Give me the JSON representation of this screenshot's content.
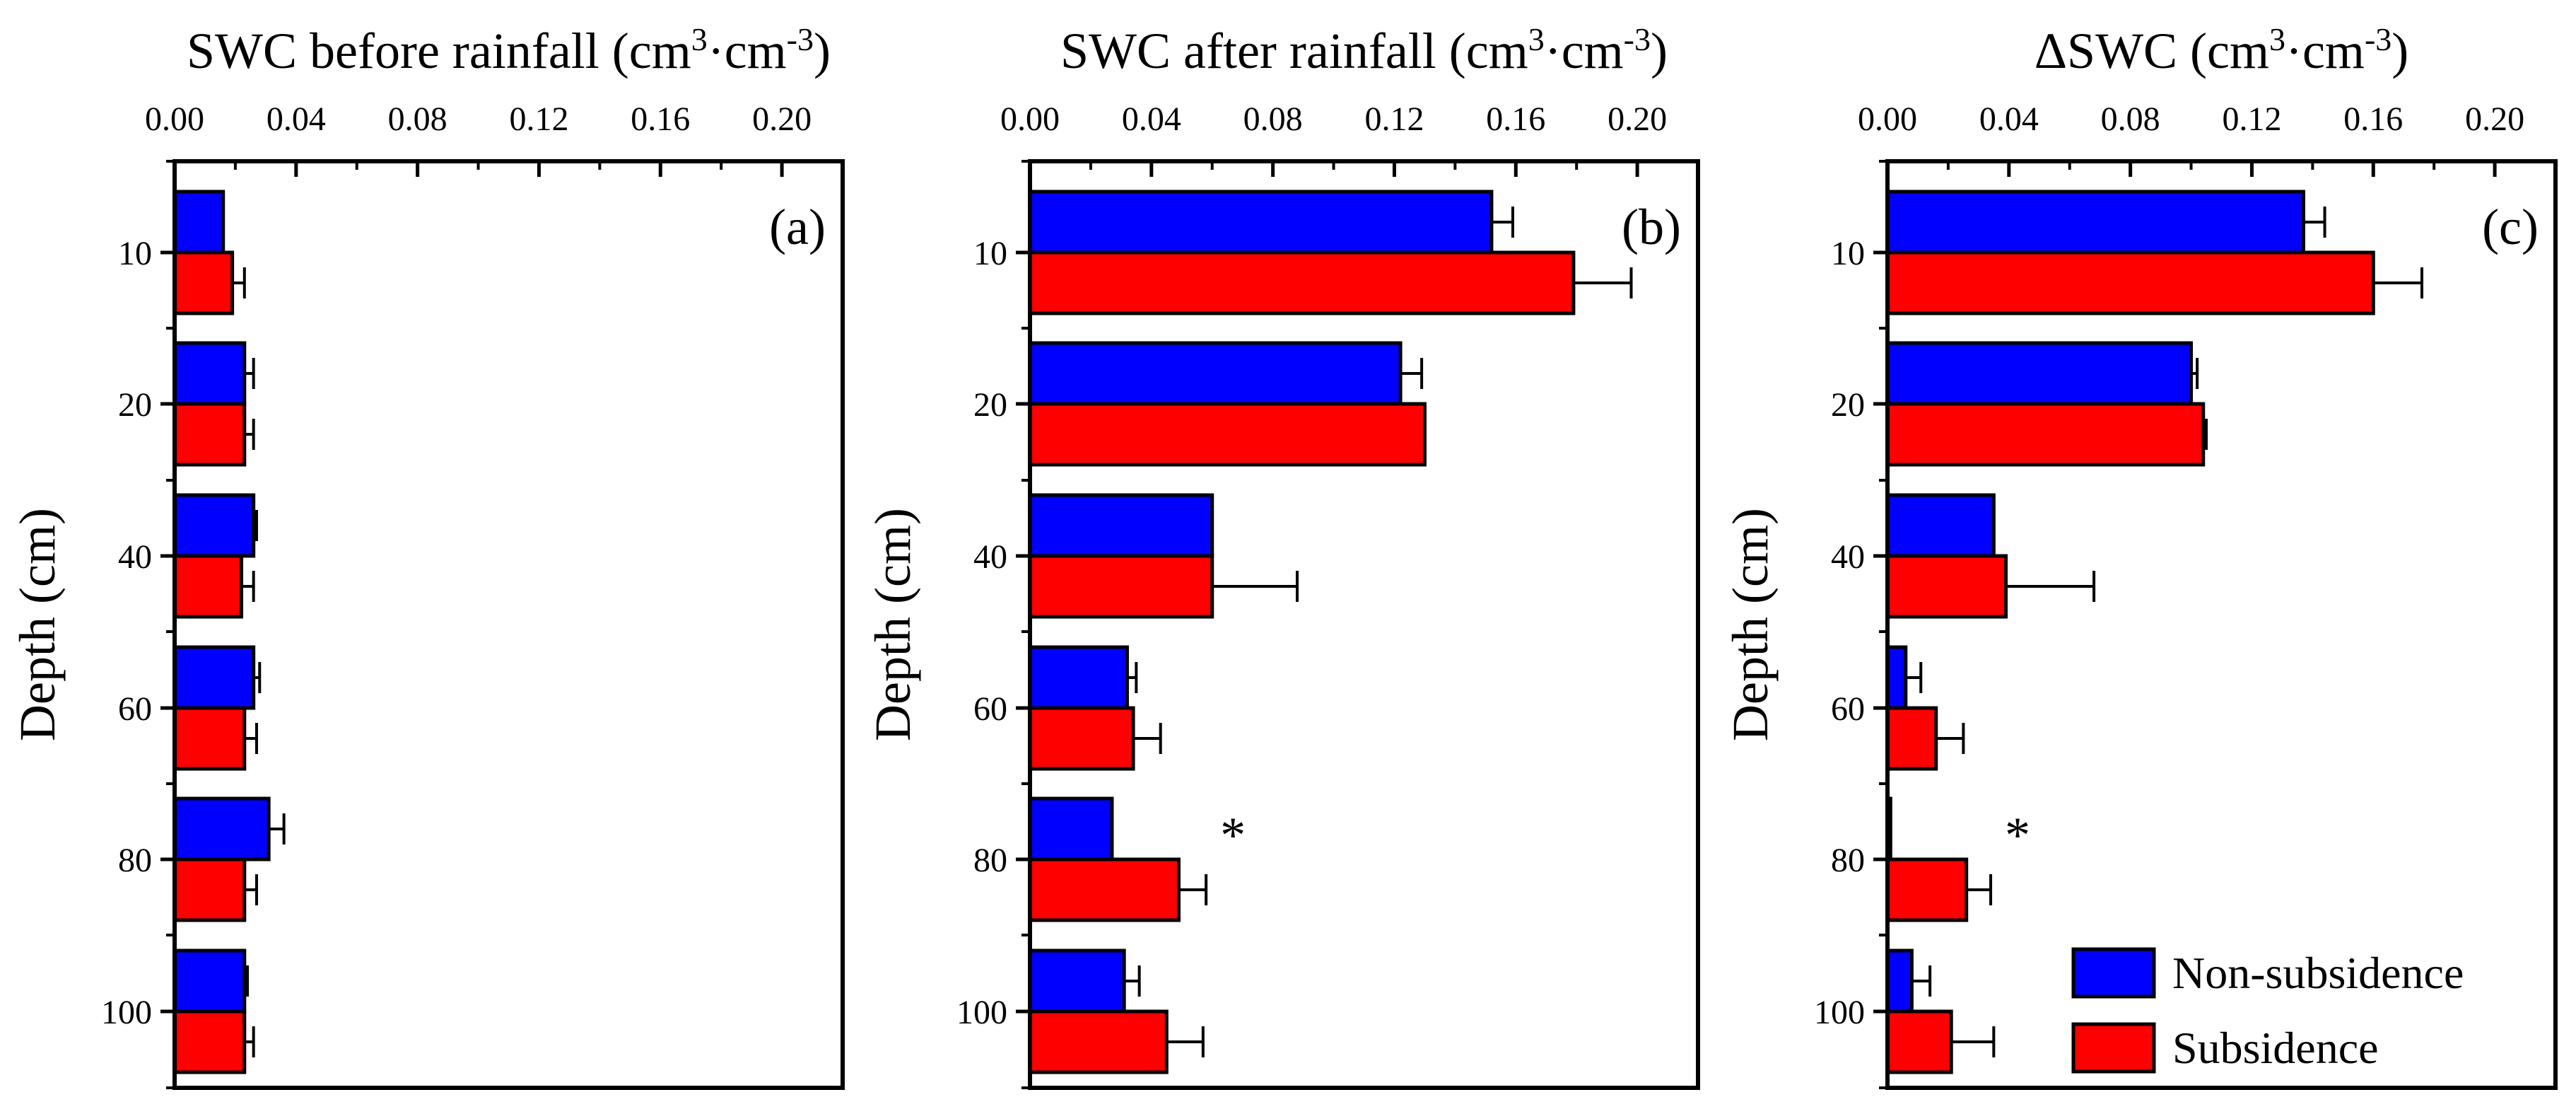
{
  "chart_data": [
    {
      "type": "bar",
      "orientation": "horizontal",
      "panel_label": "(a)",
      "title_prefix": "SWC before rainfall (cm",
      "title_sup1": "3",
      "title_mid": "·cm",
      "title_sup2": "-3",
      "title_suffix": ")",
      "ylabel": "Depth (cm)",
      "categories": [
        "10",
        "20",
        "40",
        "60",
        "80",
        "100"
      ],
      "xlim": [
        0,
        0.22
      ],
      "xticks": [
        "0.00",
        "0.04",
        "0.08",
        "0.12",
        "0.16",
        "0.20"
      ],
      "series": [
        {
          "name": "Non-subsidence",
          "color": "#0000ff",
          "values": [
            0.016,
            0.023,
            0.026,
            0.026,
            0.031,
            0.023
          ],
          "errors": [
            0.0,
            0.003,
            0.001,
            0.002,
            0.005,
            0.001
          ]
        },
        {
          "name": "Subsidence",
          "color": "#ff0000",
          "values": [
            0.019,
            0.023,
            0.022,
            0.023,
            0.023,
            0.023
          ],
          "errors": [
            0.004,
            0.003,
            0.004,
            0.004,
            0.004,
            0.003
          ]
        }
      ],
      "annotations": []
    },
    {
      "type": "bar",
      "orientation": "horizontal",
      "panel_label": "(b)",
      "title_prefix": "SWC after rainfall (cm",
      "title_sup1": "3",
      "title_mid": "·cm",
      "title_sup2": "-3",
      "title_suffix": ")",
      "ylabel": "Depth (cm)",
      "categories": [
        "10",
        "20",
        "40",
        "60",
        "80",
        "100"
      ],
      "xlim": [
        0,
        0.22
      ],
      "xticks": [
        "0.00",
        "0.04",
        "0.08",
        "0.12",
        "0.16",
        "0.20"
      ],
      "series": [
        {
          "name": "Non-subsidence",
          "color": "#0000ff",
          "values": [
            0.152,
            0.122,
            0.06,
            0.032,
            0.027,
            0.031
          ],
          "errors": [
            0.007,
            0.007,
            0.0,
            0.003,
            0.0,
            0.005
          ]
        },
        {
          "name": "Subsidence",
          "color": "#ff0000",
          "values": [
            0.179,
            0.13,
            0.06,
            0.034,
            0.049,
            0.045
          ],
          "errors": [
            0.019,
            0.0,
            0.028,
            0.009,
            0.009,
            0.012
          ]
        }
      ],
      "annotations": [
        {
          "text": "*",
          "category": "80"
        }
      ]
    },
    {
      "type": "bar",
      "orientation": "horizontal",
      "panel_label": "(c)",
      "title_prefix": "ΔSWC (cm",
      "title_sup1": "3",
      "title_mid": "·cm",
      "title_sup2": "-3",
      "title_suffix": ")",
      "ylabel": "Depth (cm)",
      "categories": [
        "10",
        "20",
        "40",
        "60",
        "80",
        "100"
      ],
      "xlim": [
        0,
        0.22
      ],
      "xticks": [
        "0.00",
        "0.04",
        "0.08",
        "0.12",
        "0.16",
        "0.20"
      ],
      "series": [
        {
          "name": "Non-subsidence",
          "color": "#0000ff",
          "values": [
            0.137,
            0.1,
            0.035,
            0.006,
            0.001,
            0.008
          ],
          "errors": [
            0.007,
            0.002,
            0.0,
            0.005,
            0.0,
            0.006
          ]
        },
        {
          "name": "Subsidence",
          "color": "#ff0000",
          "values": [
            0.16,
            0.104,
            0.039,
            0.016,
            0.026,
            0.021
          ],
          "errors": [
            0.016,
            0.001,
            0.029,
            0.009,
            0.008,
            0.014
          ]
        }
      ],
      "annotations": [
        {
          "text": "*",
          "category": "80"
        }
      ],
      "legend": {
        "position": "bottom-right",
        "entries": [
          {
            "label": "Non-subsidence",
            "color": "#0000ff"
          },
          {
            "label": "Subsidence",
            "color": "#ff0000"
          }
        ]
      }
    }
  ]
}
